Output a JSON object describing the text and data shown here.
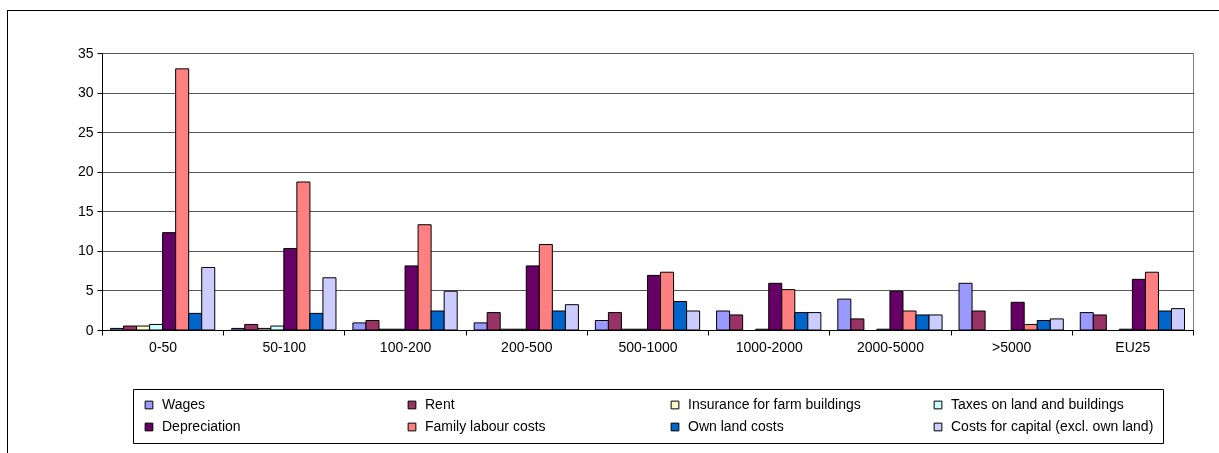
{
  "chart_data": {
    "type": "bar",
    "categories": [
      "0-50",
      "50-100",
      "100-200",
      "200-500",
      "500-1000",
      "1000-2000",
      "2000-5000",
      ">5000",
      "EU25"
    ],
    "series": [
      {
        "name": "Wages",
        "color": "#9999ff",
        "values": [
          0.2,
          0.2,
          0.9,
          0.9,
          1.2,
          2.4,
          3.9,
          5.9,
          2.2
        ]
      },
      {
        "name": "Rent",
        "color": "#993366",
        "values": [
          0.5,
          0.7,
          1.2,
          2.2,
          2.2,
          1.9,
          1.4,
          2.4,
          1.9
        ]
      },
      {
        "name": "Insurance for farm buildings",
        "color": "#ffffcc",
        "values": [
          0.5,
          0.2,
          0.1,
          0.1,
          0.1,
          null,
          null,
          null,
          null
        ]
      },
      {
        "name": "Taxes on land and buildings",
        "color": "#ccffff",
        "values": [
          0.7,
          0.5,
          0.1,
          0.1,
          0.1,
          0.1,
          0.1,
          null,
          0.1
        ]
      },
      {
        "name": "Depreciation",
        "color": "#660066",
        "values": [
          12.3,
          10.3,
          8.1,
          8.1,
          6.9,
          5.9,
          4.9,
          3.5,
          6.4
        ]
      },
      {
        "name": "Family labour costs",
        "color": "#ff8080",
        "values": [
          33.0,
          18.7,
          13.3,
          10.8,
          7.3,
          5.1,
          2.4,
          0.7,
          7.3
        ]
      },
      {
        "name": "Own land costs",
        "color": "#0066cc",
        "values": [
          2.1,
          2.1,
          2.4,
          2.4,
          3.6,
          2.2,
          1.9,
          1.2,
          2.4
        ]
      },
      {
        "name": "Costs for capital (excl. own land)",
        "color": "#ccccff",
        "values": [
          7.9,
          6.6,
          4.9,
          3.2,
          2.4,
          2.2,
          1.9,
          1.4,
          2.7
        ]
      }
    ],
    "ylim": [
      0,
      35
    ],
    "yticks": [
      0,
      5,
      10,
      15,
      20,
      25,
      30,
      35
    ],
    "grid": "y",
    "legend": "bottom"
  }
}
